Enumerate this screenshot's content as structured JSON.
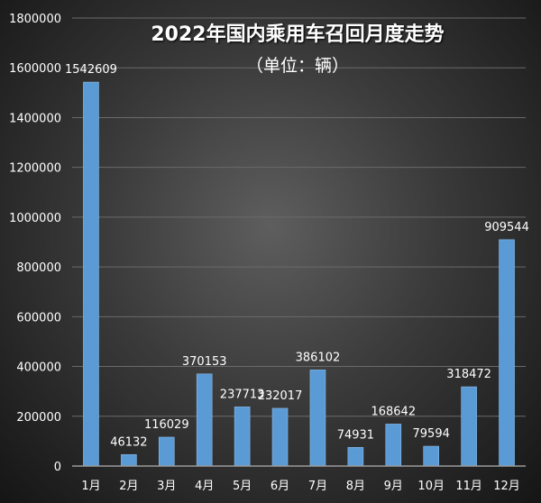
{
  "chart_data": {
    "type": "bar",
    "title": "2022年国内乘用车召回月度走势",
    "subtitle": "（单位：辆）",
    "categories": [
      "1月",
      "2月",
      "3月",
      "4月",
      "5月",
      "6月",
      "7月",
      "8月",
      "9月",
      "10月",
      "11月",
      "12月"
    ],
    "values": [
      1542609,
      46132,
      116029,
      370153,
      237713,
      232017,
      386102,
      74931,
      168642,
      79594,
      318472,
      909544
    ],
    "ylim": [
      0,
      1800000
    ],
    "yticks": [
      0,
      200000,
      400000,
      600000,
      800000,
      1000000,
      1200000,
      1400000,
      1600000,
      1800000
    ],
    "grid": true,
    "bar_color": "#5b9bd5",
    "data_labels": true
  }
}
